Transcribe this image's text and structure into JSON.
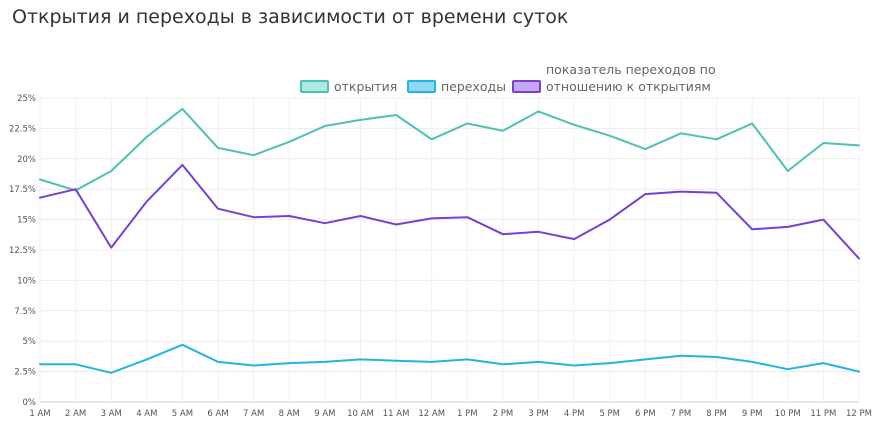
{
  "title": "Открытия и переходы в зависимости от времени суток",
  "chart_data": {
    "type": "line",
    "title": "Открытия и переходы в зависимости от времени суток",
    "xlabel": "",
    "ylabel": "",
    "ylim": [
      0,
      25
    ],
    "grid": true,
    "legend": "top",
    "categories": [
      "1 AM",
      "2 AM",
      "3 AM",
      "4 AM",
      "5 AM",
      "6 AM",
      "7 AM",
      "8 AM",
      "9 AM",
      "10 AM",
      "11 AM",
      "12 AM",
      "1 PM",
      "2 PM",
      "3 PM",
      "4 PM",
      "5 PM",
      "6 PM",
      "7 PM",
      "8 PM",
      "9 PM",
      "10 PM",
      "11 PM",
      "12 PM"
    ],
    "y_ticks": [
      "0%",
      "2.5%",
      "5%",
      "7.5%",
      "10%",
      "12.5%",
      "15%",
      "17.5%",
      "20%",
      "22.5%",
      "25%"
    ],
    "series": [
      {
        "name": "открытия",
        "color": "#4dc0b8",
        "fill": "#aee8e2",
        "values": [
          18.3,
          17.4,
          19.0,
          21.8,
          24.1,
          20.9,
          20.3,
          21.4,
          22.7,
          23.2,
          23.6,
          21.6,
          22.9,
          22.3,
          23.9,
          22.8,
          21.9,
          20.8,
          22.1,
          21.6,
          22.9,
          19.0,
          21.3,
          21.1
        ]
      },
      {
        "name": "переходы",
        "color": "#22b5e0",
        "fill": "#8fd8f2",
        "values": [
          3.1,
          3.1,
          2.4,
          3.5,
          4.7,
          3.3,
          3.0,
          3.2,
          3.3,
          3.5,
          3.4,
          3.3,
          3.5,
          3.1,
          3.3,
          3.0,
          3.2,
          3.5,
          3.8,
          3.7,
          3.3,
          2.7,
          3.2,
          2.5
        ]
      },
      {
        "name": "показатель переходов по отношению к открытиям",
        "name_lines": [
          "показатель переходов по",
          "отношению к открытиям"
        ],
        "color": "#7a3fd1",
        "fill": "#c4a8f0",
        "values": [
          16.8,
          17.5,
          12.7,
          16.5,
          19.5,
          15.9,
          15.2,
          15.3,
          14.7,
          15.3,
          14.6,
          15.1,
          15.2,
          13.8,
          14.0,
          13.4,
          15.0,
          17.1,
          17.3,
          17.2,
          14.2,
          14.4,
          15.0,
          11.8
        ]
      }
    ]
  }
}
